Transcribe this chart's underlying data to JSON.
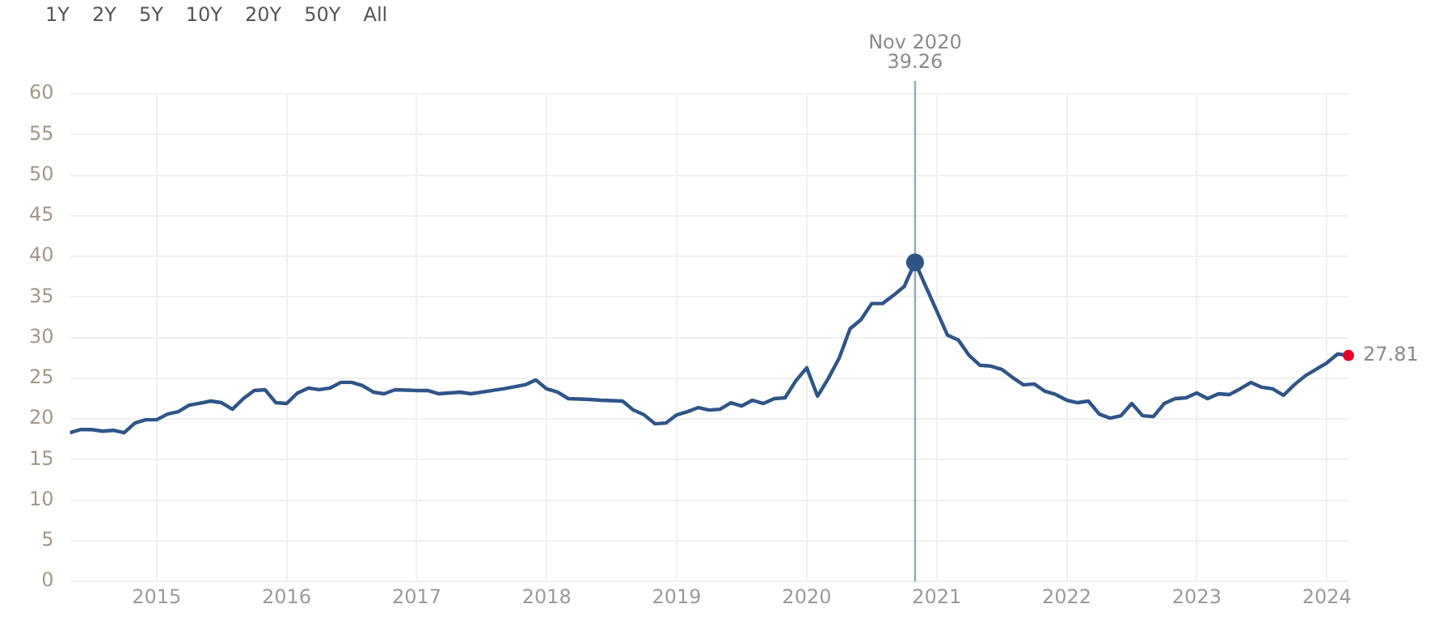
{
  "chart_data": {
    "type": "line",
    "x": [
      "2014-05",
      "2014-06",
      "2014-07",
      "2014-08",
      "2014-09",
      "2014-10",
      "2014-11",
      "2014-12",
      "2015-01",
      "2015-02",
      "2015-03",
      "2015-04",
      "2015-06",
      "2015-07",
      "2015-08",
      "2015-09",
      "2015-10",
      "2015-11",
      "2015-12",
      "2016-01",
      "2016-02",
      "2016-03",
      "2016-04",
      "2016-05",
      "2016-06",
      "2016-07",
      "2016-08",
      "2016-09",
      "2016-10",
      "2016-11",
      "2017-01",
      "2017-02",
      "2017-03",
      "2017-05",
      "2017-06",
      "2017-08",
      "2017-09",
      "2017-11",
      "2017-12",
      "2018-01",
      "2018-02",
      "2018-03",
      "2018-05",
      "2018-06",
      "2018-08",
      "2018-09",
      "2018-10",
      "2018-11",
      "2018-12",
      "2019-01",
      "2019-02",
      "2019-03",
      "2019-04",
      "2019-05",
      "2019-06",
      "2019-07",
      "2019-08",
      "2019-09",
      "2019-10",
      "2019-11",
      "2019-12",
      "2020-01",
      "2020-02",
      "2020-03",
      "2020-04",
      "2020-05",
      "2020-06",
      "2020-07",
      "2020-08",
      "2020-09",
      "2020-10",
      "2020-11",
      "2021-02",
      "2021-03",
      "2021-04",
      "2021-05",
      "2021-06",
      "2021-07",
      "2021-08",
      "2021-09",
      "2021-10",
      "2021-11",
      "2021-12",
      "2022-01",
      "2022-02",
      "2022-03",
      "2022-04",
      "2022-05",
      "2022-06",
      "2022-07",
      "2022-08",
      "2022-09",
      "2022-10",
      "2022-11",
      "2022-12",
      "2023-01",
      "2023-02",
      "2023-03",
      "2023-04",
      "2023-05",
      "2023-06",
      "2023-07",
      "2023-08",
      "2023-09",
      "2023-10",
      "2023-11",
      "2023-12",
      "2024-01",
      "2024-02",
      "2024-03"
    ],
    "series": [
      {
        "color": "#2f5587",
        "value_labels": [
          null,
          null,
          null,
          null,
          null,
          null,
          null,
          null,
          null,
          null,
          null,
          null,
          null,
          null,
          null,
          null,
          null,
          null,
          null,
          null,
          null,
          null,
          null,
          null,
          null,
          null,
          null,
          null,
          null,
          null,
          null,
          null,
          null,
          null,
          null,
          null,
          null,
          null,
          null,
          null,
          null,
          null,
          null,
          null,
          null,
          null,
          null,
          null,
          null,
          null,
          null,
          null,
          null,
          null,
          null,
          null,
          null,
          null,
          null,
          null,
          null,
          null,
          null,
          null,
          null,
          null,
          null,
          null,
          null,
          null,
          null,
          null,
          null,
          null,
          null,
          null,
          null,
          null,
          null,
          null,
          null,
          null,
          null,
          null,
          null,
          null,
          null,
          null,
          null,
          null,
          null,
          null,
          null,
          null,
          null,
          null,
          null,
          null,
          null,
          null,
          null,
          null,
          null,
          null,
          null,
          null,
          null,
          null,
          null,
          "27.81"
        ],
        "values": [
          18.3,
          18.7,
          18.7,
          18.5,
          18.6,
          18.3,
          19.5,
          19.9,
          19.9,
          20.6,
          20.9,
          21.7,
          22.2,
          22.0,
          21.2,
          22.5,
          23.5,
          23.6,
          22.0,
          21.9,
          23.2,
          23.8,
          23.6,
          23.8,
          24.5,
          24.5,
          24.1,
          23.3,
          23.1,
          23.6,
          23.5,
          23.5,
          23.1,
          23.3,
          23.1,
          23.5,
          23.7,
          24.2,
          24.8,
          23.7,
          23.3,
          22.5,
          22.4,
          22.3,
          22.2,
          21.1,
          20.5,
          19.4,
          19.5,
          20.5,
          20.9,
          21.4,
          21.1,
          21.2,
          22.0,
          21.6,
          22.3,
          21.9,
          22.5,
          22.6,
          24.7,
          26.3,
          22.8,
          25.0,
          27.5,
          31.1,
          32.2,
          34.2,
          34.2,
          35.2,
          36.3,
          39.26,
          30.3,
          29.7,
          27.8,
          26.6,
          26.5,
          26.1,
          25.1,
          24.2,
          24.3,
          23.4,
          23.0,
          22.3,
          22.0,
          22.2,
          20.6,
          20.1,
          20.4,
          21.9,
          20.4,
          20.3,
          21.9,
          22.5,
          22.6,
          23.2,
          22.5,
          23.1,
          23.0,
          23.7,
          24.5,
          23.9,
          23.7,
          22.9,
          24.2,
          25.3,
          26.1,
          26.9,
          28.0,
          27.81
        ]
      }
    ],
    "xlim": [
      "2014-05",
      "2024-03"
    ],
    "xticks": [
      "2015",
      "2016",
      "2017",
      "2018",
      "2019",
      "2020",
      "2021",
      "2022",
      "2023",
      "2024"
    ],
    "ylim": [
      0,
      60
    ],
    "yticks": [
      0,
      5,
      10,
      15,
      20,
      25,
      30,
      35,
      40,
      45,
      50,
      55,
      60
    ],
    "grid": true,
    "marker": "none",
    "line_style": "solid",
    "legend": false,
    "ref_lines": [
      {
        "axis": "x",
        "value": "2020-11",
        "label": "Nov 2020",
        "color": "#9aa8bd"
      }
    ],
    "annotations": [
      "1Y",
      "2Y",
      "5Y",
      "10Y",
      "20Y",
      "50Y",
      "All",
      {
        "text": "39.26"
      }
    ]
  }
}
